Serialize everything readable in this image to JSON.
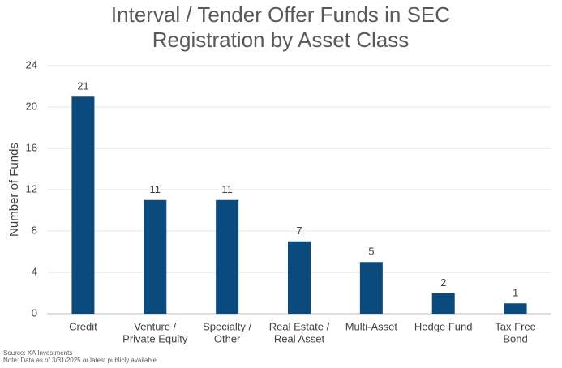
{
  "chart_data": {
    "type": "bar",
    "title": [
      "Interval / Tender Offer Funds in SEC",
      "Registration by Asset Class"
    ],
    "y_label": "Number of Funds",
    "categories": [
      [
        "Credit"
      ],
      [
        "Venture /",
        "Private Equity"
      ],
      [
        "Specialty /",
        "Other"
      ],
      [
        "Real Estate /",
        "Real Asset"
      ],
      [
        "Multi-Asset"
      ],
      [
        "Hedge Fund"
      ],
      [
        "Tax Free",
        "Bond"
      ]
    ],
    "values": [
      21,
      11,
      11,
      7,
      5,
      2,
      1
    ],
    "color": "#0b4a7d",
    "ylim": [
      0,
      24
    ],
    "yticks": [
      0,
      4,
      8,
      12,
      16,
      20,
      24
    ],
    "grid": true,
    "source": "Source: XA Investments",
    "note": "Note: Data as of 3/31/2025 or latest publicly available."
  }
}
